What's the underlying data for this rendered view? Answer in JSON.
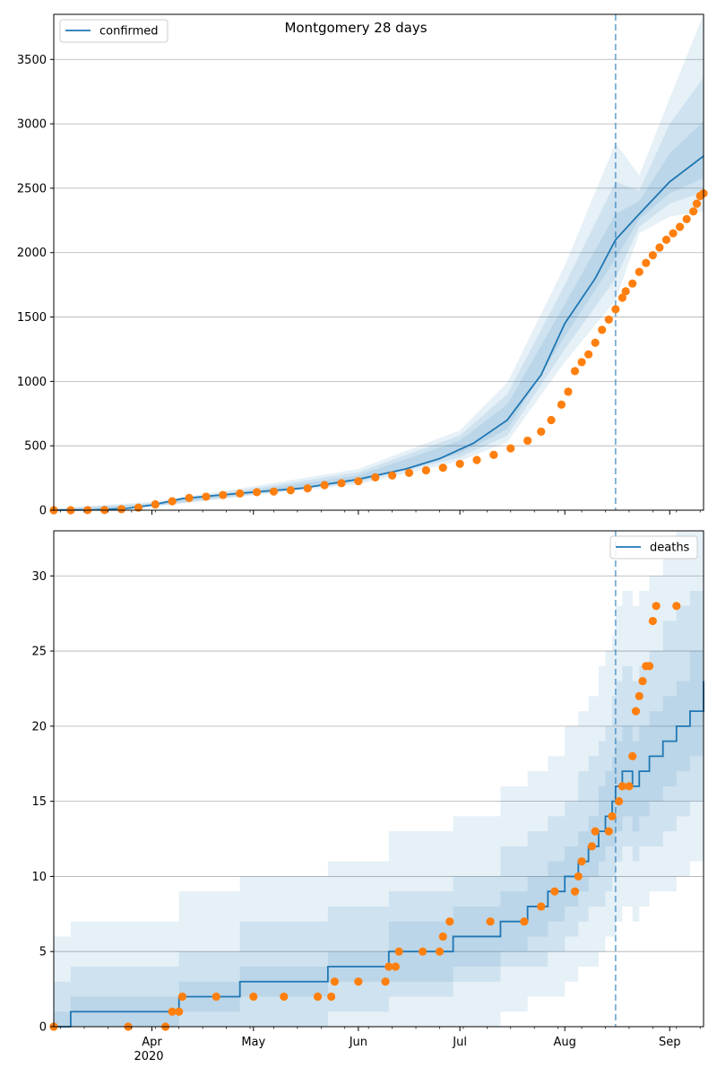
{
  "figure": {
    "title": "Montgomery 28 days"
  },
  "x_axis": {
    "months": [
      "Apr",
      "May",
      "Jun",
      "Jul",
      "Aug",
      "Sep"
    ],
    "year": "2020"
  },
  "colors": {
    "model": "#1f77b4",
    "observed": "#ff7f0e",
    "band": "#1f77b4",
    "grid": "#b0b0b0"
  },
  "chart_data": [
    {
      "type": "line",
      "panel": "top",
      "title": "Montgomery 28 days",
      "xlabel": "",
      "ylabel": "",
      "x_type": "date",
      "xlim": [
        "2020-03-03",
        "2020-09-11"
      ],
      "ylim": [
        0,
        3850
      ],
      "yticks": [
        0,
        500,
        1000,
        1500,
        2000,
        2500,
        3000,
        3500
      ],
      "grid": "horizontal",
      "legend": {
        "label": "confirmed",
        "placement": "top-left"
      },
      "forecast_start": "2020-08-16",
      "series": [
        {
          "name": "confirmed",
          "kind": "model-line",
          "points": [
            [
              "2020-03-03",
              0
            ],
            [
              "2020-03-15",
              3
            ],
            [
              "2020-03-25",
              15
            ],
            [
              "2020-04-01",
              40
            ],
            [
              "2020-04-10",
              90
            ],
            [
              "2020-04-20",
              115
            ],
            [
              "2020-05-01",
              140
            ],
            [
              "2020-05-15",
              170
            ],
            [
              "2020-06-01",
              240
            ],
            [
              "2020-06-15",
              320
            ],
            [
              "2020-06-25",
              400
            ],
            [
              "2020-07-05",
              520
            ],
            [
              "2020-07-15",
              700
            ],
            [
              "2020-07-25",
              1050
            ],
            [
              "2020-08-01",
              1450
            ],
            [
              "2020-08-10",
              1800
            ],
            [
              "2020-08-16",
              2100
            ],
            [
              "2020-08-23",
              2300
            ],
            [
              "2020-09-01",
              2550
            ],
            [
              "2020-09-11",
              2750
            ]
          ],
          "bands": [
            {
              "level": "outer",
              "lower": [
                [
                  "2020-03-03",
                  0
                ],
                [
                  "2020-04-01",
                  25
                ],
                [
                  "2020-05-01",
                  115
                ],
                [
                  "2020-06-01",
                  200
                ],
                [
                  "2020-07-01",
                  380
                ],
                [
                  "2020-07-15",
                  530
                ],
                [
                  "2020-08-01",
                  1150
                ],
                [
                  "2020-08-16",
                  1630
                ],
                [
                  "2020-08-23",
                  2150
                ],
                [
                  "2020-09-01",
                  2280
                ],
                [
                  "2020-09-11",
                  2320
                ]
              ],
              "upper": [
                [
                  "2020-03-03",
                  15
                ],
                [
                  "2020-04-01",
                  65
                ],
                [
                  "2020-05-01",
                  185
                ],
                [
                  "2020-06-01",
                  320
                ],
                [
                  "2020-07-01",
                  620
                ],
                [
                  "2020-07-15",
                  990
                ],
                [
                  "2020-08-01",
                  1900
                ],
                [
                  "2020-08-16",
                  2850
                ],
                [
                  "2020-08-23",
                  2600
                ],
                [
                  "2020-09-01",
                  3200
                ],
                [
                  "2020-09-11",
                  3850
                ]
              ]
            },
            {
              "level": "middle",
              "lower": [
                [
                  "2020-03-03",
                  0
                ],
                [
                  "2020-04-01",
                  30
                ],
                [
                  "2020-05-01",
                  122
                ],
                [
                  "2020-06-01",
                  215
                ],
                [
                  "2020-07-01",
                  410
                ],
                [
                  "2020-07-15",
                  580
                ],
                [
                  "2020-08-01",
                  1250
                ],
                [
                  "2020-08-16",
                  1800
                ],
                [
                  "2020-08-23",
                  2200
                ],
                [
                  "2020-09-01",
                  2380
                ],
                [
                  "2020-09-11",
                  2470
                ]
              ],
              "upper": [
                [
                  "2020-03-03",
                  10
                ],
                [
                  "2020-04-01",
                  55
                ],
                [
                  "2020-05-01",
                  170
                ],
                [
                  "2020-06-01",
                  295
                ],
                [
                  "2020-07-01",
                  580
                ],
                [
                  "2020-07-15",
                  900
                ],
                [
                  "2020-08-01",
                  1750
                ],
                [
                  "2020-08-16",
                  2550
                ],
                [
                  "2020-08-23",
                  2480
                ],
                [
                  "2020-09-01",
                  3000
                ],
                [
                  "2020-09-11",
                  3360
                ]
              ]
            },
            {
              "level": "inner",
              "lower": [
                [
                  "2020-03-03",
                  0
                ],
                [
                  "2020-04-01",
                  35
                ],
                [
                  "2020-05-01",
                  130
                ],
                [
                  "2020-06-01",
                  225
                ],
                [
                  "2020-07-01",
                  440
                ],
                [
                  "2020-07-15",
                  630
                ],
                [
                  "2020-08-01",
                  1350
                ],
                [
                  "2020-08-16",
                  1950
                ],
                [
                  "2020-08-23",
                  2260
                ],
                [
                  "2020-09-01",
                  2460
                ],
                [
                  "2020-09-11",
                  2580
                ]
              ],
              "upper": [
                [
                  "2020-03-03",
                  6
                ],
                [
                  "2020-04-01",
                  48
                ],
                [
                  "2020-05-01",
                  155
                ],
                [
                  "2020-06-01",
                  270
                ],
                [
                  "2020-07-01",
                  540
                ],
                [
                  "2020-07-15",
                  820
                ],
                [
                  "2020-08-01",
                  1600
                ],
                [
                  "2020-08-16",
                  2300
                ],
                [
                  "2020-08-23",
                  2400
                ],
                [
                  "2020-09-01",
                  2770
                ],
                [
                  "2020-09-11",
                  3020
                ]
              ]
            }
          ]
        },
        {
          "name": "",
          "kind": "observed-points",
          "points": [
            [
              "2020-03-03",
              0
            ],
            [
              "2020-03-08",
              0
            ],
            [
              "2020-03-13",
              1
            ],
            [
              "2020-03-18",
              2
            ],
            [
              "2020-03-23",
              8
            ],
            [
              "2020-03-28",
              20
            ],
            [
              "2020-04-02",
              45
            ],
            [
              "2020-04-07",
              70
            ],
            [
              "2020-04-12",
              95
            ],
            [
              "2020-04-17",
              105
            ],
            [
              "2020-04-22",
              118
            ],
            [
              "2020-04-27",
              130
            ],
            [
              "2020-05-02",
              140
            ],
            [
              "2020-05-07",
              145
            ],
            [
              "2020-05-12",
              155
            ],
            [
              "2020-05-17",
              170
            ],
            [
              "2020-05-22",
              195
            ],
            [
              "2020-05-27",
              210
            ],
            [
              "2020-06-01",
              225
            ],
            [
              "2020-06-06",
              255
            ],
            [
              "2020-06-11",
              270
            ],
            [
              "2020-06-16",
              290
            ],
            [
              "2020-06-21",
              310
            ],
            [
              "2020-06-26",
              330
            ],
            [
              "2020-07-01",
              360
            ],
            [
              "2020-07-06",
              390
            ],
            [
              "2020-07-11",
              430
            ],
            [
              "2020-07-16",
              480
            ],
            [
              "2020-07-21",
              540
            ],
            [
              "2020-07-25",
              610
            ],
            [
              "2020-07-28",
              700
            ],
            [
              "2020-07-31",
              820
            ],
            [
              "2020-08-02",
              920
            ],
            [
              "2020-08-04",
              1080
            ],
            [
              "2020-08-06",
              1150
            ],
            [
              "2020-08-08",
              1210
            ],
            [
              "2020-08-10",
              1300
            ],
            [
              "2020-08-12",
              1400
            ],
            [
              "2020-08-14",
              1480
            ],
            [
              "2020-08-16",
              1560
            ],
            [
              "2020-08-18",
              1650
            ],
            [
              "2020-08-19",
              1700
            ],
            [
              "2020-08-21",
              1760
            ],
            [
              "2020-08-23",
              1850
            ],
            [
              "2020-08-25",
              1920
            ],
            [
              "2020-08-27",
              1980
            ],
            [
              "2020-08-29",
              2040
            ],
            [
              "2020-08-31",
              2100
            ],
            [
              "2020-09-02",
              2150
            ],
            [
              "2020-09-04",
              2200
            ],
            [
              "2020-09-06",
              2260
            ],
            [
              "2020-09-08",
              2320
            ],
            [
              "2020-09-09",
              2380
            ],
            [
              "2020-09-10",
              2440
            ],
            [
              "2020-09-11",
              2460
            ]
          ]
        }
      ]
    },
    {
      "type": "line",
      "panel": "bottom",
      "xlabel": "",
      "ylabel": "",
      "x_type": "date",
      "xlim": [
        "2020-03-03",
        "2020-09-11"
      ],
      "ylim": [
        0,
        33
      ],
      "yticks": [
        0,
        5,
        10,
        15,
        20,
        25,
        30
      ],
      "grid": "horizontal",
      "legend": {
        "label": "deaths",
        "placement": "top-right"
      },
      "forecast_start": "2020-08-16",
      "series": [
        {
          "name": "deaths",
          "kind": "model-step",
          "points": [
            [
              "2020-03-03",
              0
            ],
            [
              "2020-03-08",
              1
            ],
            [
              "2020-04-09",
              2
            ],
            [
              "2020-04-27",
              3
            ],
            [
              "2020-05-23",
              4
            ],
            [
              "2020-06-10",
              5
            ],
            [
              "2020-06-29",
              6
            ],
            [
              "2020-07-13",
              7
            ],
            [
              "2020-07-21",
              8
            ],
            [
              "2020-07-27",
              9
            ],
            [
              "2020-08-01",
              10
            ],
            [
              "2020-08-05",
              11
            ],
            [
              "2020-08-08",
              12
            ],
            [
              "2020-08-11",
              13
            ],
            [
              "2020-08-13",
              14
            ],
            [
              "2020-08-15",
              15
            ],
            [
              "2020-08-16",
              16
            ],
            [
              "2020-08-18",
              17
            ],
            [
              "2020-08-21",
              16
            ],
            [
              "2020-08-23",
              17
            ],
            [
              "2020-08-26",
              18
            ],
            [
              "2020-08-30",
              19
            ],
            [
              "2020-09-03",
              20
            ],
            [
              "2020-09-07",
              21
            ],
            [
              "2020-09-11",
              22
            ],
            [
              "2020-09-14",
              23
            ]
          ]
        },
        {
          "name": "",
          "kind": "observed-points",
          "points": [
            [
              "2020-03-03",
              0
            ],
            [
              "2020-03-25",
              0
            ],
            [
              "2020-04-05",
              0
            ],
            [
              "2020-04-07",
              1
            ],
            [
              "2020-04-09",
              1
            ],
            [
              "2020-04-10",
              2
            ],
            [
              "2020-04-20",
              2
            ],
            [
              "2020-05-01",
              2
            ],
            [
              "2020-05-10",
              2
            ],
            [
              "2020-05-20",
              2
            ],
            [
              "2020-05-24",
              2
            ],
            [
              "2020-05-25",
              3
            ],
            [
              "2020-06-01",
              3
            ],
            [
              "2020-06-09",
              3
            ],
            [
              "2020-06-10",
              4
            ],
            [
              "2020-06-12",
              4
            ],
            [
              "2020-06-13",
              5
            ],
            [
              "2020-06-20",
              5
            ],
            [
              "2020-06-25",
              5
            ],
            [
              "2020-06-26",
              6
            ],
            [
              "2020-06-28",
              7
            ],
            [
              "2020-07-10",
              7
            ],
            [
              "2020-07-20",
              7
            ],
            [
              "2020-07-25",
              8
            ],
            [
              "2020-07-29",
              9
            ],
            [
              "2020-08-04",
              9
            ],
            [
              "2020-08-05",
              10
            ],
            [
              "2020-08-06",
              11
            ],
            [
              "2020-08-09",
              12
            ],
            [
              "2020-08-10",
              13
            ],
            [
              "2020-08-14",
              13
            ],
            [
              "2020-08-15",
              14
            ],
            [
              "2020-08-17",
              15
            ],
            [
              "2020-08-18",
              16
            ],
            [
              "2020-08-20",
              16
            ],
            [
              "2020-08-21",
              18
            ],
            [
              "2020-08-22",
              21
            ],
            [
              "2020-08-23",
              22
            ],
            [
              "2020-08-24",
              23
            ],
            [
              "2020-08-25",
              24
            ],
            [
              "2020-08-26",
              24
            ],
            [
              "2020-08-27",
              27
            ],
            [
              "2020-08-28",
              28
            ],
            [
              "2020-09-03",
              28
            ]
          ]
        }
      ]
    }
  ]
}
